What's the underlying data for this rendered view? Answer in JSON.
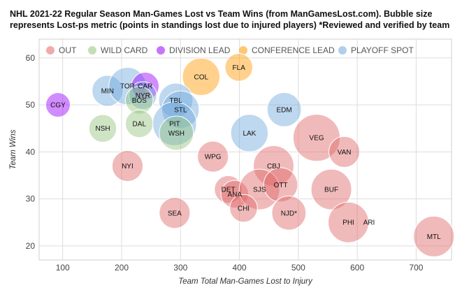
{
  "title": "NHL 2021-22 Regular Season Man-Games Lost vs Team Wins (from ManGamesLost.com). Bubble size represents Lost-ps metric (points in standings lost due to injured players) *Reviewed and verified by team",
  "chart_data": {
    "type": "scatter",
    "bubble": true,
    "xlabel": "Team Total Man-Games Lost to Injury",
    "ylabel": "Team Wins",
    "xlim": [
      60,
      760
    ],
    "ylim": [
      17,
      64
    ],
    "x_ticks": [
      100,
      200,
      300,
      400,
      500,
      600,
      700
    ],
    "y_ticks": [
      20,
      30,
      40,
      50,
      60
    ],
    "grid": true,
    "legend_position": "top",
    "legend": [
      {
        "key": "out",
        "label": "OUT",
        "color": "#e06666"
      },
      {
        "key": "wildcard",
        "label": "WILD CARD",
        "color": "#93c47d"
      },
      {
        "key": "division",
        "label": "DIVISION LEAD",
        "color": "#9900ff"
      },
      {
        "key": "conference",
        "label": "CONFERENCE LEAD",
        "color": "#ff9900"
      },
      {
        "key": "playoff",
        "label": "PLAYOFF SPOT",
        "color": "#6fa8dc"
      }
    ],
    "points": [
      {
        "team": "CGY",
        "x": 92,
        "y": 50,
        "size": 5,
        "status": "division"
      },
      {
        "team": "MIN",
        "x": 176,
        "y": 53,
        "size": 7,
        "status": "playoff"
      },
      {
        "team": "TOR",
        "x": 210,
        "y": 54,
        "size": 9,
        "status": "playoff"
      },
      {
        "team": "CAR",
        "x": 240,
        "y": 54,
        "size": 6,
        "status": "division"
      },
      {
        "team": "NYR",
        "x": 236,
        "y": 52,
        "size": 6,
        "status": "playoff"
      },
      {
        "team": "BOS",
        "x": 230,
        "y": 51,
        "size": 6,
        "status": "wildcard"
      },
      {
        "team": "NSH",
        "x": 168,
        "y": 45,
        "size": 6,
        "status": "wildcard"
      },
      {
        "team": "DAL",
        "x": 230,
        "y": 46,
        "size": 6,
        "status": "wildcard"
      },
      {
        "team": "NYI",
        "x": 210,
        "y": 37,
        "size": 7,
        "status": "out"
      },
      {
        "team": "COL",
        "x": 335,
        "y": 56,
        "size": 9,
        "status": "conference"
      },
      {
        "team": "FLA",
        "x": 399,
        "y": 58,
        "size": 6,
        "status": "conference"
      },
      {
        "team": "TBL",
        "x": 292,
        "y": 51,
        "size": 8,
        "status": "playoff"
      },
      {
        "team": "STL",
        "x": 300,
        "y": 49,
        "size": 9,
        "status": "playoff"
      },
      {
        "team": "PIT",
        "x": 290,
        "y": 46,
        "size": 11,
        "status": "playoff"
      },
      {
        "team": "WSH",
        "x": 293,
        "y": 44,
        "size": 8,
        "status": "wildcard"
      },
      {
        "team": "SEA",
        "x": 290,
        "y": 27,
        "size": 7,
        "status": "out"
      },
      {
        "team": "WPG",
        "x": 355,
        "y": 39,
        "size": 7,
        "status": "out"
      },
      {
        "team": "LAK",
        "x": 417,
        "y": 44,
        "size": 9,
        "status": "playoff"
      },
      {
        "team": "EDM",
        "x": 476,
        "y": 49,
        "size": 8,
        "status": "playoff"
      },
      {
        "team": "CBJ",
        "x": 458,
        "y": 37,
        "size": 10,
        "status": "out"
      },
      {
        "team": "DET",
        "x": 381,
        "y": 32,
        "size": 6,
        "status": "out"
      },
      {
        "team": "ANA",
        "x": 392,
        "y": 31,
        "size": 6,
        "status": "out"
      },
      {
        "team": "SJS",
        "x": 434,
        "y": 32,
        "size": 10,
        "status": "out"
      },
      {
        "team": "OTT",
        "x": 470,
        "y": 33,
        "size": 8,
        "status": "out"
      },
      {
        "team": "CHI",
        "x": 407,
        "y": 28,
        "size": 6,
        "status": "out"
      },
      {
        "team": "NJD*",
        "x": 484,
        "y": 27,
        "size": 8,
        "status": "out"
      },
      {
        "team": "VEG",
        "x": 531,
        "y": 43,
        "size": 12,
        "status": "out"
      },
      {
        "team": "VAN",
        "x": 578,
        "y": 40,
        "size": 7,
        "status": "out"
      },
      {
        "team": "BUF",
        "x": 556,
        "y": 32,
        "size": 10,
        "status": "out"
      },
      {
        "team": "PHI",
        "x": 585,
        "y": 25,
        "size": 10,
        "status": "out"
      },
      {
        "team": "ARI",
        "x": 620,
        "y": 25,
        "size": 0,
        "status": "out"
      },
      {
        "team": "MTL",
        "x": 730,
        "y": 22,
        "size": 10,
        "status": "out"
      }
    ]
  }
}
